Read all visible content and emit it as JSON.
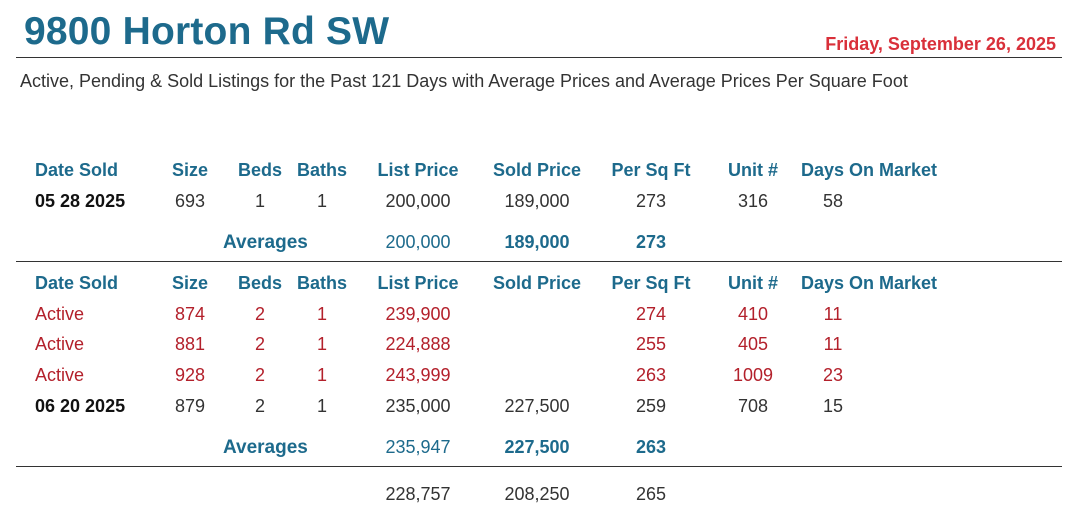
{
  "header": {
    "title": "9800 Horton Rd SW",
    "date": "Friday, September 26, 2025",
    "subtitle": "Active, Pending & Sold Listings for the Past 121 Days with Average Prices and Average Prices Per Square Foot"
  },
  "columns": {
    "date_sold": "Date Sold",
    "size": "Size",
    "beds": "Beds",
    "baths": "Baths",
    "list_price": "List Price",
    "sold_price": "Sold Price",
    "per_sq_ft": "Per Sq Ft",
    "unit": "Unit #",
    "days_on_market": "Days On Market"
  },
  "group1": {
    "rows": [
      {
        "status": "05 28 2025",
        "size": "693",
        "beds": "1",
        "baths": "1",
        "list_price": "200,000",
        "sold_price": "189,000",
        "per_sq_ft": "273",
        "unit": "316",
        "dom": "58"
      }
    ],
    "averages": {
      "label": "Averages",
      "list_price": "200,000",
      "sold_price": "189,000",
      "per_sq_ft": "273"
    }
  },
  "group2": {
    "rows": [
      {
        "status": "Active",
        "size": "874",
        "beds": "2",
        "baths": "1",
        "list_price": "239,900",
        "sold_price": "",
        "per_sq_ft": "274",
        "unit": "410",
        "dom": "11"
      },
      {
        "status": "Active",
        "size": "881",
        "beds": "2",
        "baths": "1",
        "list_price": "224,888",
        "sold_price": "",
        "per_sq_ft": "255",
        "unit": "405",
        "dom": "11"
      },
      {
        "status": "Active",
        "size": "928",
        "beds": "2",
        "baths": "1",
        "list_price": "243,999",
        "sold_price": "",
        "per_sq_ft": "263",
        "unit": "1009",
        "dom": "23"
      },
      {
        "status": "06 20 2025",
        "size": "879",
        "beds": "2",
        "baths": "1",
        "list_price": "235,000",
        "sold_price": "227,500",
        "per_sq_ft": "259",
        "unit": "708",
        "dom": "15"
      }
    ],
    "averages": {
      "label": "Averages",
      "list_price": "235,947",
      "sold_price": "227,500",
      "per_sq_ft": "263"
    }
  },
  "totals": {
    "list_price": "228,757",
    "sold_price": "208,250",
    "per_sq_ft": "265"
  },
  "colors": {
    "accent": "#1d6a8c",
    "active": "#b3202b",
    "date": "#d9303a"
  }
}
